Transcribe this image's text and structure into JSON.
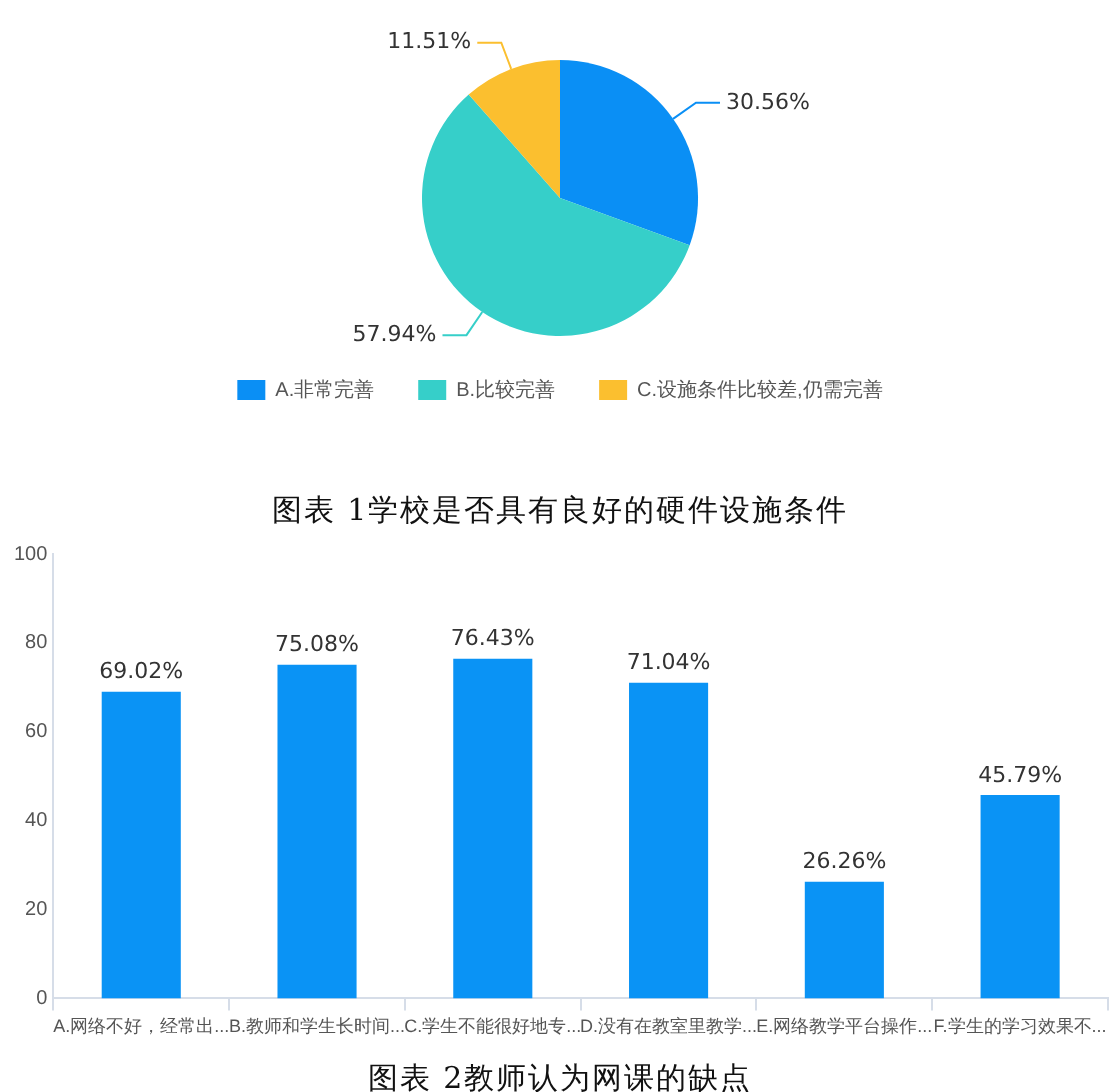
{
  "chart_data": [
    {
      "type": "pie",
      "title": "图表 1学校是否具有良好的硬件设施条件",
      "categories": [
        "A.非常完善",
        "B.比较完善",
        "C.设施条件比较差,仍需完善"
      ],
      "values": [
        30.56,
        57.94,
        11.51
      ],
      "colors": [
        "#0a8ff5",
        "#36cfc9",
        "#fbbf2f"
      ],
      "value_labels": [
        "30.56%",
        "57.94%",
        "11.51%"
      ],
      "legend": "bottom"
    },
    {
      "type": "bar",
      "title": "图表 2教师认为网课的缺点",
      "categories": [
        "A.网络不好，经常出...",
        "B.教师和学生长时间...",
        "C.学生不能很好地专...",
        "D.没有在教室里教学...",
        "E.网络教学平台操作...",
        "F.学生的学习效果不..."
      ],
      "values": [
        69.02,
        75.08,
        76.43,
        71.04,
        26.26,
        45.79
      ],
      "color": "#0a93f5",
      "value_labels": [
        "69.02%",
        "75.08%",
        "76.43%",
        "71.04%",
        "26.26%",
        "45.79%"
      ],
      "ylim": [
        0,
        100
      ],
      "yticks": [
        0,
        20,
        40,
        60,
        80,
        100
      ],
      "grid": false,
      "legend": false
    }
  ]
}
